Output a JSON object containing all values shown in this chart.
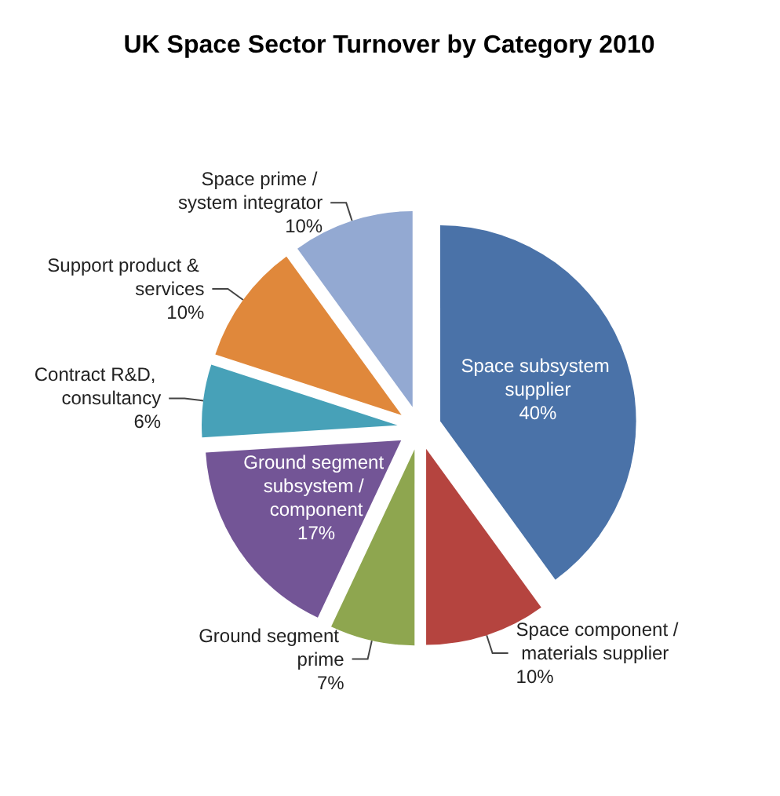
{
  "chart_data": {
    "type": "pie",
    "title": "UK Space Sector Turnover by Category 2010",
    "categories": [
      "Space subsystem supplier",
      "Space component / materials supplier",
      "Ground segment prime",
      "Ground segment subsystem / component",
      "Contract R&D, consultancy",
      "Support product & services",
      "Space prime / system integrator"
    ],
    "values": [
      40,
      10,
      7,
      17,
      6,
      10,
      10
    ],
    "colors": [
      "#4a72a8",
      "#b5443f",
      "#8ea64f",
      "#735596",
      "#47a1b8",
      "#e0883b",
      "#93a9d2"
    ],
    "value_labels": [
      "40%",
      "10%",
      "7%",
      "17%",
      "6%",
      "10%",
      "10%"
    ],
    "legend": false
  }
}
